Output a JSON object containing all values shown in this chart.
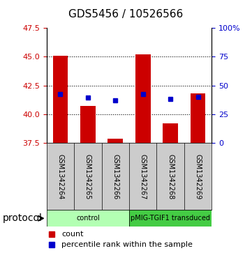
{
  "title": "GDS5456 / 10526566",
  "samples": [
    "GSM1342264",
    "GSM1342265",
    "GSM1342266",
    "GSM1342267",
    "GSM1342268",
    "GSM1342269"
  ],
  "bar_bottoms": [
    37.5,
    37.5,
    37.5,
    37.5,
    37.5,
    37.5
  ],
  "bar_tops": [
    45.05,
    40.72,
    37.87,
    45.22,
    39.22,
    41.82
  ],
  "blue_dots": [
    41.72,
    41.42,
    41.22,
    41.72,
    41.32,
    41.52
  ],
  "ylim_left": [
    37.5,
    47.5
  ],
  "yticks_left": [
    37.5,
    40.0,
    42.5,
    45.0,
    47.5
  ],
  "ylim_right": [
    0,
    100
  ],
  "yticks_right": [
    0,
    25,
    50,
    75,
    100
  ],
  "ytick_labels_right": [
    "0",
    "25",
    "50",
    "75",
    "100%"
  ],
  "bar_color": "#cc0000",
  "dot_color": "#0000cc",
  "bar_width": 0.55,
  "groups": [
    {
      "label": "control",
      "sample_indices": [
        0,
        1,
        2
      ],
      "color": "#b3ffb3"
    },
    {
      "label": "pMIG-TGIF1 transduced",
      "sample_indices": [
        3,
        4,
        5
      ],
      "color": "#44cc44"
    }
  ],
  "protocol_label": "protocol",
  "legend_count_label": "count",
  "legend_pct_label": "percentile rank within the sample",
  "grid_color": "black",
  "grid_linestyle": "dotted",
  "grid_linewidth": 0.8,
  "background_color": "#ffffff",
  "plot_bg_color": "#ffffff",
  "sample_box_color": "#cccccc",
  "left_ytick_color": "#cc0000",
  "right_ytick_color": "#0000cc",
  "title_fontsize": 11,
  "tick_fontsize": 8,
  "sample_fontsize": 7,
  "legend_fontsize": 8,
  "protocol_fontsize": 10
}
